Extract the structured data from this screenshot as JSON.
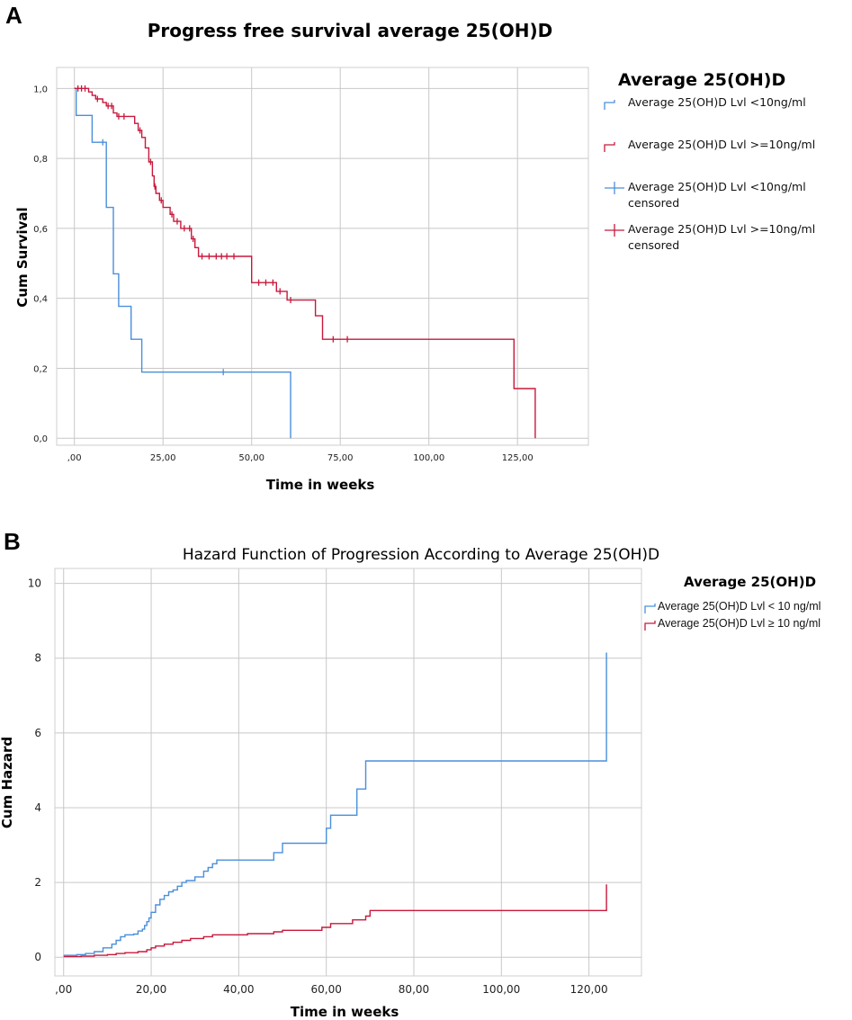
{
  "colors": {
    "blue": "#4a8fdb",
    "red": "#c8193c",
    "grid": "#c8c8c8"
  },
  "chart_data": [
    {
      "panel": "A",
      "type": "line",
      "title": "Progress free survival average 25(OH)D",
      "xlabel": "Time in weeks",
      "ylabel": "Cum Survival",
      "xlim": [
        -5,
        145
      ],
      "ylim": [
        -0.02,
        1.06
      ],
      "x_ticks": [
        0,
        25,
        50,
        75,
        100,
        125
      ],
      "x_tick_labels": [
        ",00",
        "25,00",
        "50,00",
        "75,00",
        "100,00",
        "125,00"
      ],
      "y_ticks": [
        0,
        0.2,
        0.4,
        0.6,
        0.8,
        1.0
      ],
      "y_tick_labels": [
        "0,0",
        "0,2",
        "0,4",
        "0,6",
        "0,8",
        "1,0"
      ],
      "legend_title": "Average 25(OH)D",
      "legend": [
        {
          "text": "Average 25(OH)D Lvl <10ng/ml",
          "kind": "step",
          "series": 0
        },
        {
          "text": "Average 25(OH)D Lvl >=10ng/ml",
          "kind": "step",
          "series": 1
        },
        {
          "text": "Average 25(OH)D Lvl <10ng/ml",
          "text2": "censored",
          "kind": "censor",
          "series": 0
        },
        {
          "text": "Average 25(OH)D Lvl >=10ng/ml",
          "text2": "censored",
          "kind": "censor",
          "series": 1
        }
      ],
      "series": [
        {
          "name": "Average 25(OH)D Lvl <10ng/ml",
          "color": "blue",
          "steps": [
            [
              0,
              1.0
            ],
            [
              0.5,
              0.923
            ],
            [
              5,
              0.846
            ],
            [
              9,
              0.66
            ],
            [
              11,
              0.47
            ],
            [
              12.5,
              0.377
            ],
            [
              16,
              0.283
            ],
            [
              19,
              0.189
            ],
            [
              61,
              0.0
            ]
          ],
          "end_x": 61,
          "censored": [
            [
              8,
              0.846
            ],
            [
              42,
              0.189
            ]
          ]
        },
        {
          "name": "Average 25(OH)D Lvl >=10ng/ml",
          "color": "red",
          "steps": [
            [
              0,
              1.0
            ],
            [
              4,
              0.99
            ],
            [
              5,
              0.98
            ],
            [
              6,
              0.97
            ],
            [
              8,
              0.96
            ],
            [
              9,
              0.95
            ],
            [
              11,
              0.93
            ],
            [
              12,
              0.92
            ],
            [
              17,
              0.9
            ],
            [
              18,
              0.88
            ],
            [
              19,
              0.86
            ],
            [
              20,
              0.83
            ],
            [
              21,
              0.79
            ],
            [
              22,
              0.75
            ],
            [
              22.5,
              0.72
            ],
            [
              23,
              0.7
            ],
            [
              24,
              0.68
            ],
            [
              25,
              0.66
            ],
            [
              27,
              0.64
            ],
            [
              28,
              0.62
            ],
            [
              30,
              0.6
            ],
            [
              33,
              0.57
            ],
            [
              34,
              0.545
            ],
            [
              35,
              0.52
            ],
            [
              50,
              0.445
            ],
            [
              57,
              0.42
            ],
            [
              60,
              0.395
            ],
            [
              68,
              0.35
            ],
            [
              70,
              0.283
            ],
            [
              124,
              0.142
            ],
            [
              130,
              0.0
            ]
          ],
          "end_x": 130,
          "censored": [
            [
              1,
              1.0
            ],
            [
              2,
              1.0
            ],
            [
              3,
              1.0
            ],
            [
              6.5,
              0.97
            ],
            [
              9.5,
              0.95
            ],
            [
              10.5,
              0.95
            ],
            [
              12.5,
              0.92
            ],
            [
              14,
              0.92
            ],
            [
              18.5,
              0.88
            ],
            [
              21.5,
              0.79
            ],
            [
              22.7,
              0.72
            ],
            [
              24.5,
              0.68
            ],
            [
              27.5,
              0.64
            ],
            [
              29,
              0.62
            ],
            [
              31,
              0.6
            ],
            [
              32.5,
              0.6
            ],
            [
              33.5,
              0.57
            ],
            [
              36,
              0.52
            ],
            [
              38,
              0.52
            ],
            [
              40,
              0.52
            ],
            [
              41.5,
              0.52
            ],
            [
              43,
              0.52
            ],
            [
              45,
              0.52
            ],
            [
              52,
              0.445
            ],
            [
              54,
              0.445
            ],
            [
              56,
              0.445
            ],
            [
              58,
              0.42
            ],
            [
              61,
              0.395
            ],
            [
              73,
              0.283
            ],
            [
              77,
              0.283
            ]
          ]
        }
      ]
    },
    {
      "panel": "B",
      "type": "line",
      "title": "Hazard Function of Progression According to Average 25(OH)D",
      "xlabel": "Time in weeks",
      "ylabel": "Cum Hazard",
      "xlim": [
        -2,
        132
      ],
      "ylim": [
        -0.5,
        10.4
      ],
      "x_ticks": [
        0,
        20,
        40,
        60,
        80,
        100,
        120
      ],
      "x_tick_labels": [
        ",00",
        "20,00",
        "40,00",
        "60,00",
        "80,00",
        "100,00",
        "120,00"
      ],
      "y_ticks": [
        0,
        2,
        4,
        6,
        8,
        10
      ],
      "y_tick_labels": [
        "0",
        "2",
        "4",
        "6",
        "8",
        "10"
      ],
      "legend_title": "Average 25(OH)D",
      "legend": [
        {
          "text": "Average 25(OH)D Lvl < 10 ng/ml",
          "kind": "step",
          "series": 0
        },
        {
          "text": "Average 25(OH)D Lvl ≥ 10 ng/ml",
          "kind": "step",
          "series": 1
        }
      ],
      "series": [
        {
          "name": "Average 25(OH)D Lvl < 10 ng/ml",
          "color": "blue",
          "steps": [
            [
              0,
              0.05
            ],
            [
              3,
              0.07
            ],
            [
              5,
              0.1
            ],
            [
              7,
              0.15
            ],
            [
              9,
              0.25
            ],
            [
              11,
              0.35
            ],
            [
              12,
              0.45
            ],
            [
              13,
              0.55
            ],
            [
              14,
              0.6
            ],
            [
              16,
              0.62
            ],
            [
              17,
              0.7
            ],
            [
              18,
              0.75
            ],
            [
              18.5,
              0.85
            ],
            [
              19,
              0.95
            ],
            [
              19.5,
              1.05
            ],
            [
              20,
              1.2
            ],
            [
              21,
              1.4
            ],
            [
              22,
              1.55
            ],
            [
              23,
              1.65
            ],
            [
              24,
              1.75
            ],
            [
              25,
              1.8
            ],
            [
              26,
              1.9
            ],
            [
              27,
              2.0
            ],
            [
              28,
              2.05
            ],
            [
              30,
              2.15
            ],
            [
              32,
              2.3
            ],
            [
              33,
              2.4
            ],
            [
              34,
              2.5
            ],
            [
              35,
              2.6
            ],
            [
              48,
              2.8
            ],
            [
              50,
              3.05
            ],
            [
              60,
              3.45
            ],
            [
              61,
              3.8
            ],
            [
              67,
              4.5
            ],
            [
              69,
              5.25
            ],
            [
              124,
              8.15
            ]
          ],
          "end_x": 124
        },
        {
          "name": "Average 25(OH)D Lvl ≥ 10 ng/ml",
          "color": "red",
          "steps": [
            [
              0,
              0.02
            ],
            [
              4,
              0.03
            ],
            [
              7,
              0.05
            ],
            [
              10,
              0.07
            ],
            [
              12,
              0.1
            ],
            [
              14,
              0.12
            ],
            [
              17,
              0.15
            ],
            [
              19,
              0.2
            ],
            [
              20,
              0.25
            ],
            [
              21,
              0.3
            ],
            [
              23,
              0.35
            ],
            [
              25,
              0.4
            ],
            [
              27,
              0.45
            ],
            [
              29,
              0.5
            ],
            [
              32,
              0.55
            ],
            [
              34,
              0.6
            ],
            [
              42,
              0.63
            ],
            [
              48,
              0.68
            ],
            [
              50,
              0.72
            ],
            [
              59,
              0.8
            ],
            [
              61,
              0.9
            ],
            [
              66,
              1.0
            ],
            [
              69,
              1.1
            ],
            [
              70,
              1.25
            ],
            [
              124,
              1.95
            ]
          ],
          "end_x": 124
        }
      ]
    }
  ]
}
